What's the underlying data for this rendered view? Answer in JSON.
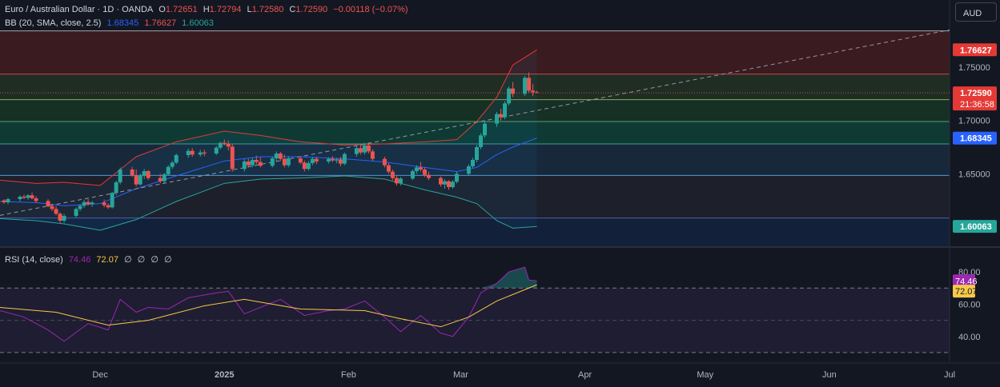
{
  "legend": {
    "symbol": "Euro / Australian Dollar · 1D · OANDA",
    "open_label": "O",
    "open": "1.72651",
    "high_label": "H",
    "high": "1.72794",
    "low_label": "L",
    "low": "1.72580",
    "close_label": "C",
    "close": "1.72590",
    "change": "−0.00118 (−0.07%)"
  },
  "bb_legend": {
    "label": "BB (20, SMA, close, 2.5)",
    "middle": "1.68345",
    "upper": "1.76627",
    "lower": "1.60063"
  },
  "rsi_legend": {
    "label": "RSI (14, close)",
    "rsi": "74.46",
    "ma": "72.07",
    "extra": [
      "∅",
      "∅",
      "∅",
      "∅"
    ]
  },
  "currency": "AUD",
  "colors": {
    "bg": "#131722",
    "up": "#26a69a",
    "down": "#ef5350",
    "bb_upper": "#e53935",
    "bb_middle": "#2962ff",
    "bb_lower": "#26a69a",
    "rsi": "#9c27b0",
    "rsi_ma": "#f7c948",
    "price_tag": "#e53935"
  },
  "price_badges": {
    "bb_upper": "1.76627",
    "last": "1.72590",
    "countdown": "21:36:58",
    "bb_middle": "1.68345",
    "bb_lower": "1.60063"
  },
  "rsi_badges": {
    "rsi": "74.46",
    "ma": "72.07"
  },
  "chart_data": {
    "type": "candlestick",
    "x_axis_labels": [
      "Dec",
      "2025",
      "Feb",
      "Mar",
      "Apr",
      "May",
      "Jun",
      "Jul"
    ],
    "x_axis_dates": [
      "2024-12-01",
      "2025-01-01",
      "2025-02-01",
      "2025-03-01",
      "2025-04-01",
      "2025-05-01",
      "2025-06-01",
      "2025-07-01"
    ],
    "price_ticks": [
      "1.75000",
      "1.70000",
      "1.65000"
    ],
    "price_tick_values": [
      1.75,
      1.7,
      1.65
    ],
    "price_range": [
      1.582,
      1.786
    ],
    "horizontal_levels": [
      1.784,
      1.7435,
      1.7195,
      1.699,
      1.678,
      1.6485,
      1.6085
    ],
    "level_zone_colors": [
      "#3a1b1f",
      "#1f2d23",
      "#163025",
      "#0f3a34",
      "#17283a",
      "#1d1f2b",
      "#13203a"
    ],
    "trendline": {
      "from": {
        "date": "2024-11-06",
        "price": 1.611
      },
      "to": {
        "date": "2025-07-01",
        "price": 1.785
      }
    },
    "candles": [
      [
        "2024-11-07",
        1.625,
        1.6262,
        1.6218,
        1.6232
      ],
      [
        "2024-11-08",
        1.6232,
        1.6275,
        1.6215,
        1.6262
      ],
      [
        "2024-11-11",
        1.6262,
        1.6298,
        1.624,
        1.6285
      ],
      [
        "2024-11-12",
        1.6285,
        1.6305,
        1.6262,
        1.6275
      ],
      [
        "2024-11-13",
        1.6275,
        1.631,
        1.6255,
        1.6298
      ],
      [
        "2024-11-14",
        1.6298,
        1.6325,
        1.626,
        1.627
      ],
      [
        "2024-11-15",
        1.627,
        1.629,
        1.6225,
        1.6245
      ],
      [
        "2024-11-18",
        1.6245,
        1.6262,
        1.6185,
        1.6195
      ],
      [
        "2024-11-19",
        1.6195,
        1.622,
        1.615,
        1.617
      ],
      [
        "2024-11-20",
        1.617,
        1.6198,
        1.611,
        1.6125
      ],
      [
        "2024-11-21",
        1.6125,
        1.614,
        1.604,
        1.606
      ],
      [
        "2024-11-22",
        1.606,
        1.6125,
        1.604,
        1.6105
      ],
      [
        "2024-11-25",
        1.6105,
        1.6185,
        1.609,
        1.617
      ],
      [
        "2024-11-26",
        1.617,
        1.6215,
        1.615,
        1.62
      ],
      [
        "2024-11-27",
        1.62,
        1.6255,
        1.618,
        1.6235
      ],
      [
        "2024-11-28",
        1.6235,
        1.6262,
        1.62,
        1.6215
      ],
      [
        "2024-11-29",
        1.6215,
        1.6245,
        1.619,
        1.623
      ],
      [
        "2024-12-02",
        1.623,
        1.626,
        1.6185,
        1.6205
      ],
      [
        "2024-12-03",
        1.6205,
        1.6225,
        1.617,
        1.6185
      ],
      [
        "2024-12-04",
        1.6185,
        1.633,
        1.6175,
        1.632
      ],
      [
        "2024-12-05",
        1.632,
        1.6435,
        1.63,
        1.642
      ],
      [
        "2024-12-06",
        1.642,
        1.656,
        1.64,
        1.654
      ],
      [
        "2024-12-09",
        1.654,
        1.6565,
        1.647,
        1.6485
      ],
      [
        "2024-12-10",
        1.6485,
        1.654,
        1.638,
        1.64
      ],
      [
        "2024-12-11",
        1.64,
        1.65,
        1.639,
        1.648
      ],
      [
        "2024-12-12",
        1.648,
        1.6545,
        1.645,
        1.6525
      ],
      [
        "2024-12-13",
        1.6525,
        1.6535,
        1.644,
        1.646
      ],
      [
        "2024-12-16",
        1.646,
        1.65,
        1.641,
        1.643
      ],
      [
        "2024-12-17",
        1.643,
        1.651,
        1.6415,
        1.6495
      ],
      [
        "2024-12-18",
        1.6495,
        1.658,
        1.648,
        1.6565
      ],
      [
        "2024-12-19",
        1.6565,
        1.662,
        1.6545,
        1.6605
      ],
      [
        "2024-12-20",
        1.6605,
        1.669,
        1.659,
        1.6675
      ],
      [
        "2024-12-23",
        1.6675,
        1.6735,
        1.665,
        1.6715
      ],
      [
        "2024-12-24",
        1.6715,
        1.674,
        1.666,
        1.668
      ],
      [
        "2024-12-26",
        1.668,
        1.6725,
        1.666,
        1.67
      ],
      [
        "2024-12-27",
        1.67,
        1.6725,
        1.6665,
        1.669
      ],
      [
        "2024-12-30",
        1.669,
        1.676,
        1.6675,
        1.6745
      ],
      [
        "2024-12-31",
        1.6745,
        1.68,
        1.673,
        1.679
      ],
      [
        "2025-01-01",
        1.679,
        1.682,
        1.6765,
        1.678
      ],
      [
        "2025-01-02",
        1.678,
        1.681,
        1.672,
        1.6755
      ],
      [
        "2025-01-03",
        1.6755,
        1.678,
        1.652,
        1.6545
      ],
      [
        "2025-01-06",
        1.6545,
        1.664,
        1.652,
        1.6615
      ],
      [
        "2025-01-07",
        1.6615,
        1.664,
        1.656,
        1.658
      ],
      [
        "2025-01-08",
        1.658,
        1.665,
        1.656,
        1.663
      ],
      [
        "2025-01-09",
        1.663,
        1.667,
        1.659,
        1.661
      ],
      [
        "2025-01-10",
        1.661,
        1.6655,
        1.656,
        1.6575
      ],
      [
        "2025-01-13",
        1.6575,
        1.666,
        1.656,
        1.6645
      ],
      [
        "2025-01-14",
        1.6645,
        1.671,
        1.662,
        1.669
      ],
      [
        "2025-01-15",
        1.669,
        1.6705,
        1.662,
        1.664
      ],
      [
        "2025-01-16",
        1.664,
        1.668,
        1.656,
        1.658
      ],
      [
        "2025-01-17",
        1.658,
        1.6665,
        1.656,
        1.6645
      ],
      [
        "2025-01-20",
        1.6645,
        1.6665,
        1.659,
        1.6605
      ],
      [
        "2025-01-21",
        1.6605,
        1.6625,
        1.652,
        1.6545
      ],
      [
        "2025-01-22",
        1.6545,
        1.662,
        1.653,
        1.66
      ],
      [
        "2025-01-23",
        1.66,
        1.666,
        1.658,
        1.664
      ],
      [
        "2025-01-24",
        1.664,
        1.666,
        1.659,
        1.6615
      ],
      [
        "2025-01-27",
        1.6615,
        1.6655,
        1.6595,
        1.664
      ],
      [
        "2025-01-28",
        1.664,
        1.6665,
        1.661,
        1.6625
      ],
      [
        "2025-01-29",
        1.6625,
        1.665,
        1.66,
        1.6635
      ],
      [
        "2025-01-30",
        1.6635,
        1.666,
        1.657,
        1.6595
      ],
      [
        "2025-01-31",
        1.6595,
        1.67,
        1.658,
        1.6685
      ],
      [
        "2025-02-03",
        1.6685,
        1.676,
        1.666,
        1.674
      ],
      [
        "2025-02-04",
        1.674,
        1.677,
        1.668,
        1.67
      ],
      [
        "2025-02-05",
        1.67,
        1.679,
        1.668,
        1.6765
      ],
      [
        "2025-02-06",
        1.6765,
        1.6795,
        1.669,
        1.671
      ],
      [
        "2025-02-07",
        1.671,
        1.673,
        1.662,
        1.664
      ],
      [
        "2025-02-10",
        1.664,
        1.666,
        1.656,
        1.658
      ],
      [
        "2025-02-11",
        1.658,
        1.66,
        1.65,
        1.652
      ],
      [
        "2025-02-12",
        1.652,
        1.654,
        1.644,
        1.646
      ],
      [
        "2025-02-13",
        1.646,
        1.648,
        1.639,
        1.641
      ],
      [
        "2025-02-14",
        1.641,
        1.647,
        1.639,
        1.6455
      ],
      [
        "2025-02-17",
        1.6455,
        1.654,
        1.644,
        1.6525
      ],
      [
        "2025-02-18",
        1.6525,
        1.658,
        1.65,
        1.656
      ],
      [
        "2025-02-19",
        1.656,
        1.661,
        1.652,
        1.654
      ],
      [
        "2025-02-20",
        1.654,
        1.656,
        1.647,
        1.649
      ],
      [
        "2025-02-21",
        1.649,
        1.652,
        1.644,
        1.646
      ],
      [
        "2025-02-24",
        1.646,
        1.6475,
        1.638,
        1.64
      ],
      [
        "2025-02-25",
        1.64,
        1.645,
        1.636,
        1.643
      ],
      [
        "2025-02-26",
        1.643,
        1.644,
        1.635,
        1.6375
      ],
      [
        "2025-02-27",
        1.6375,
        1.644,
        1.636,
        1.6425
      ],
      [
        "2025-02-28",
        1.6425,
        1.652,
        1.641,
        1.65
      ],
      [
        "2025-03-03",
        1.65,
        1.659,
        1.648,
        1.657
      ],
      [
        "2025-03-04",
        1.657,
        1.665,
        1.655,
        1.663
      ],
      [
        "2025-03-05",
        1.663,
        1.677,
        1.661,
        1.675
      ],
      [
        "2025-03-06",
        1.675,
        1.688,
        1.673,
        1.686
      ],
      [
        "2025-03-07",
        1.686,
        1.699,
        1.684,
        1.697
      ],
      [
        "2025-03-10",
        1.697,
        1.708,
        1.694,
        1.706
      ],
      [
        "2025-03-11",
        1.706,
        1.711,
        1.7,
        1.703
      ],
      [
        "2025-03-12",
        1.703,
        1.718,
        1.701,
        1.716
      ],
      [
        "2025-03-13",
        1.716,
        1.732,
        1.714,
        1.73
      ],
      [
        "2025-03-14",
        1.73,
        1.736,
        1.722,
        1.725
      ],
      [
        "2025-03-17",
        1.725,
        1.742,
        1.723,
        1.74
      ],
      [
        "2025-03-18",
        1.74,
        1.745,
        1.726,
        1.728
      ],
      [
        "2025-03-19",
        1.728,
        1.734,
        1.723,
        1.7265
      ],
      [
        "2025-03-20",
        1.7265,
        1.7279,
        1.7258,
        1.7259
      ]
    ],
    "bollinger": {
      "params": "20, SMA, close, 2.5",
      "dates": [
        "2024-11-06",
        "2024-11-15",
        "2024-11-22",
        "2024-12-01",
        "2024-12-10",
        "2024-12-20",
        "2025-01-01",
        "2025-01-10",
        "2025-01-20",
        "2025-01-31",
        "2025-02-10",
        "2025-02-20",
        "2025-02-28",
        "2025-03-05",
        "2025-03-10",
        "2025-03-14",
        "2025-03-20"
      ],
      "upper": [
        1.644,
        1.641,
        1.642,
        1.639,
        1.666,
        1.68,
        1.69,
        1.686,
        1.68,
        1.677,
        1.678,
        1.68,
        1.682,
        1.699,
        1.722,
        1.752,
        1.7663
      ],
      "middle": [
        1.624,
        1.623,
        1.62,
        1.622,
        1.636,
        1.648,
        1.662,
        1.666,
        1.666,
        1.664,
        1.661,
        1.656,
        1.652,
        1.656,
        1.668,
        1.675,
        1.6835
      ],
      "lower": [
        1.608,
        1.606,
        1.603,
        1.597,
        1.607,
        1.624,
        1.641,
        1.645,
        1.646,
        1.648,
        1.645,
        1.635,
        1.628,
        1.622,
        1.606,
        1.599,
        1.6006
      ]
    },
    "rsi": {
      "params": "14, close",
      "y_ticks": [
        "80.00",
        "60.00",
        "40.00"
      ],
      "y_tick_values": [
        80,
        60,
        40
      ],
      "y_range": [
        24.5,
        88
      ],
      "levels": [
        70,
        50,
        30
      ],
      "dates": [
        "2024-11-06",
        "2024-11-12",
        "2024-11-18",
        "2024-11-22",
        "2024-11-28",
        "2024-12-03",
        "2024-12-06",
        "2024-12-10",
        "2024-12-13",
        "2024-12-18",
        "2024-12-23",
        "2024-12-30",
        "2025-01-02",
        "2025-01-06",
        "2025-01-10",
        "2025-01-15",
        "2025-01-21",
        "2025-01-27",
        "2025-01-31",
        "2025-02-05",
        "2025-02-10",
        "2025-02-14",
        "2025-02-19",
        "2025-02-24",
        "2025-02-27",
        "2025-03-03",
        "2025-03-06",
        "2025-03-10",
        "2025-03-13",
        "2025-03-17",
        "2025-03-18",
        "2025-03-20"
      ],
      "values": [
        56,
        52,
        44,
        37,
        48,
        44,
        63,
        55,
        58,
        57,
        64,
        67,
        68,
        54,
        58,
        63,
        53,
        56,
        57,
        62,
        52,
        43,
        53,
        42,
        40,
        52,
        67,
        73,
        80,
        83,
        75,
        74.46
      ],
      "ma_dates": [
        "2024-11-06",
        "2024-11-20",
        "2024-12-03",
        "2024-12-13",
        "2024-12-27",
        "2025-01-06",
        "2025-01-20",
        "2025-02-05",
        "2025-02-14",
        "2025-02-24",
        "2025-03-03",
        "2025-03-10",
        "2025-03-20"
      ],
      "ma_values": [
        58,
        55,
        47,
        50,
        59,
        63,
        57,
        56,
        51,
        46,
        52,
        62,
        72.07
      ]
    }
  }
}
